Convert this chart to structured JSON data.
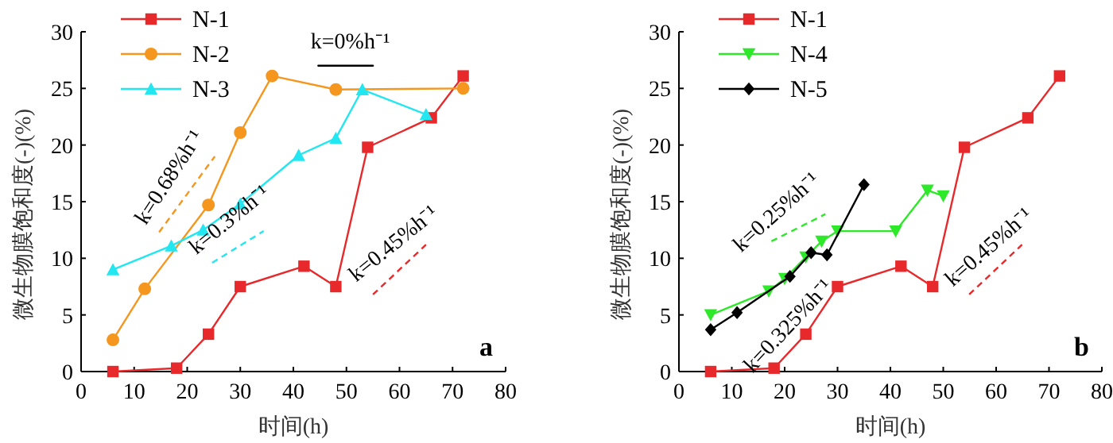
{
  "chart_data": [
    {
      "type": "line",
      "xlabel": "时间(h)",
      "ylabel": "微生物膜饱和度(-)(%)",
      "xlim": [
        0,
        80
      ],
      "ylim": [
        0,
        30
      ],
      "xticks": [
        0,
        10,
        20,
        30,
        40,
        50,
        60,
        70,
        80
      ],
      "yticks": [
        0,
        5,
        10,
        15,
        20,
        25,
        30
      ],
      "legend": "top left",
      "series": [
        {
          "name": "N-1",
          "color": "#e8292b",
          "marker": "square",
          "x": [
            6,
            18,
            24,
            30,
            42,
            48,
            54,
            66,
            72
          ],
          "values": [
            0,
            0.3,
            3.3,
            7.5,
            9.3,
            7.5,
            19.8,
            22.4,
            26.1
          ]
        },
        {
          "name": "N-2",
          "color": "#f5961e",
          "marker": "circle",
          "x": [
            6,
            12,
            24,
            30,
            36,
            48,
            72
          ],
          "values": [
            2.8,
            7.3,
            14.7,
            21.1,
            26.1,
            24.9,
            25
          ]
        },
        {
          "name": "N-3",
          "color": "#22e6f0",
          "marker": "triangle",
          "x": [
            6,
            17,
            23,
            30,
            41,
            48,
            53,
            65
          ],
          "values": [
            9,
            11.1,
            12.5,
            14.8,
            19.1,
            20.6,
            24.9,
            22.7
          ]
        },
        {
          "color": "#f5961e",
          "line_style": "dashed",
          "x": [
            14.7,
            25.2
          ],
          "values": [
            12.3,
            19
          ]
        },
        {
          "color": "#22e6f0",
          "line_style": "dashed",
          "x": [
            24.7,
            34.4
          ],
          "values": [
            9.6,
            12.4
          ]
        },
        {
          "color": "#e8292b",
          "line_style": "dashed",
          "x": [
            55,
            65
          ],
          "values": [
            6.8,
            11.2
          ]
        },
        {
          "color": "#000000",
          "line_style": "solid",
          "x": [
            44.7,
            55
          ],
          "values": [
            27,
            27
          ]
        }
      ],
      "annotations": [
        "k=0%h⁻¹",
        "k=0.68%h⁻¹",
        "k=0.3%h⁻¹",
        "k=0.45%h⁻¹",
        "a"
      ]
    },
    {
      "type": "line",
      "xlabel": "时间(h)",
      "ylabel": "微生物膜饱和度(-)(%)",
      "xlim": [
        0,
        80
      ],
      "ylim": [
        0,
        30
      ],
      "xticks": [
        0,
        10,
        20,
        30,
        40,
        50,
        60,
        70,
        80
      ],
      "yticks": [
        0,
        5,
        10,
        15,
        20,
        25,
        30
      ],
      "legend": "top left",
      "series": [
        {
          "name": "N-1",
          "color": "#e8292b",
          "marker": "square",
          "x": [
            6,
            18,
            24,
            30,
            42,
            48,
            54,
            66,
            72
          ],
          "values": [
            0,
            0.3,
            3.3,
            7.5,
            9.3,
            7.5,
            19.8,
            22.4,
            26.1
          ]
        },
        {
          "name": "N-4",
          "color": "#2ee82a",
          "marker": "triangle-down",
          "x": [
            6,
            17,
            20,
            24,
            27,
            30,
            41,
            47,
            50
          ],
          "values": [
            5,
            7.1,
            8.2,
            10.1,
            11.5,
            12.4,
            12.4,
            16,
            15.5
          ]
        },
        {
          "name": "N-5",
          "color": "#000000",
          "marker": "diamond",
          "x": [
            6,
            11,
            21,
            25,
            28,
            35
          ],
          "values": [
            3.7,
            5.2,
            8.4,
            10.5,
            10.3,
            16.5
          ]
        },
        {
          "color": "#2ee82a",
          "line_style": "dashed",
          "x": [
            17.5,
            27.7
          ],
          "values": [
            11.5,
            13.9
          ]
        },
        {
          "color": "#e8292b",
          "line_style": "dashed",
          "x": [
            54.9,
            64.9
          ],
          "values": [
            6.8,
            11.2
          ]
        }
      ],
      "annotations": [
        "k=0.25%h⁻¹",
        "k=0.325%h⁻¹",
        "k=0.45%h⁻¹",
        "b"
      ]
    }
  ]
}
